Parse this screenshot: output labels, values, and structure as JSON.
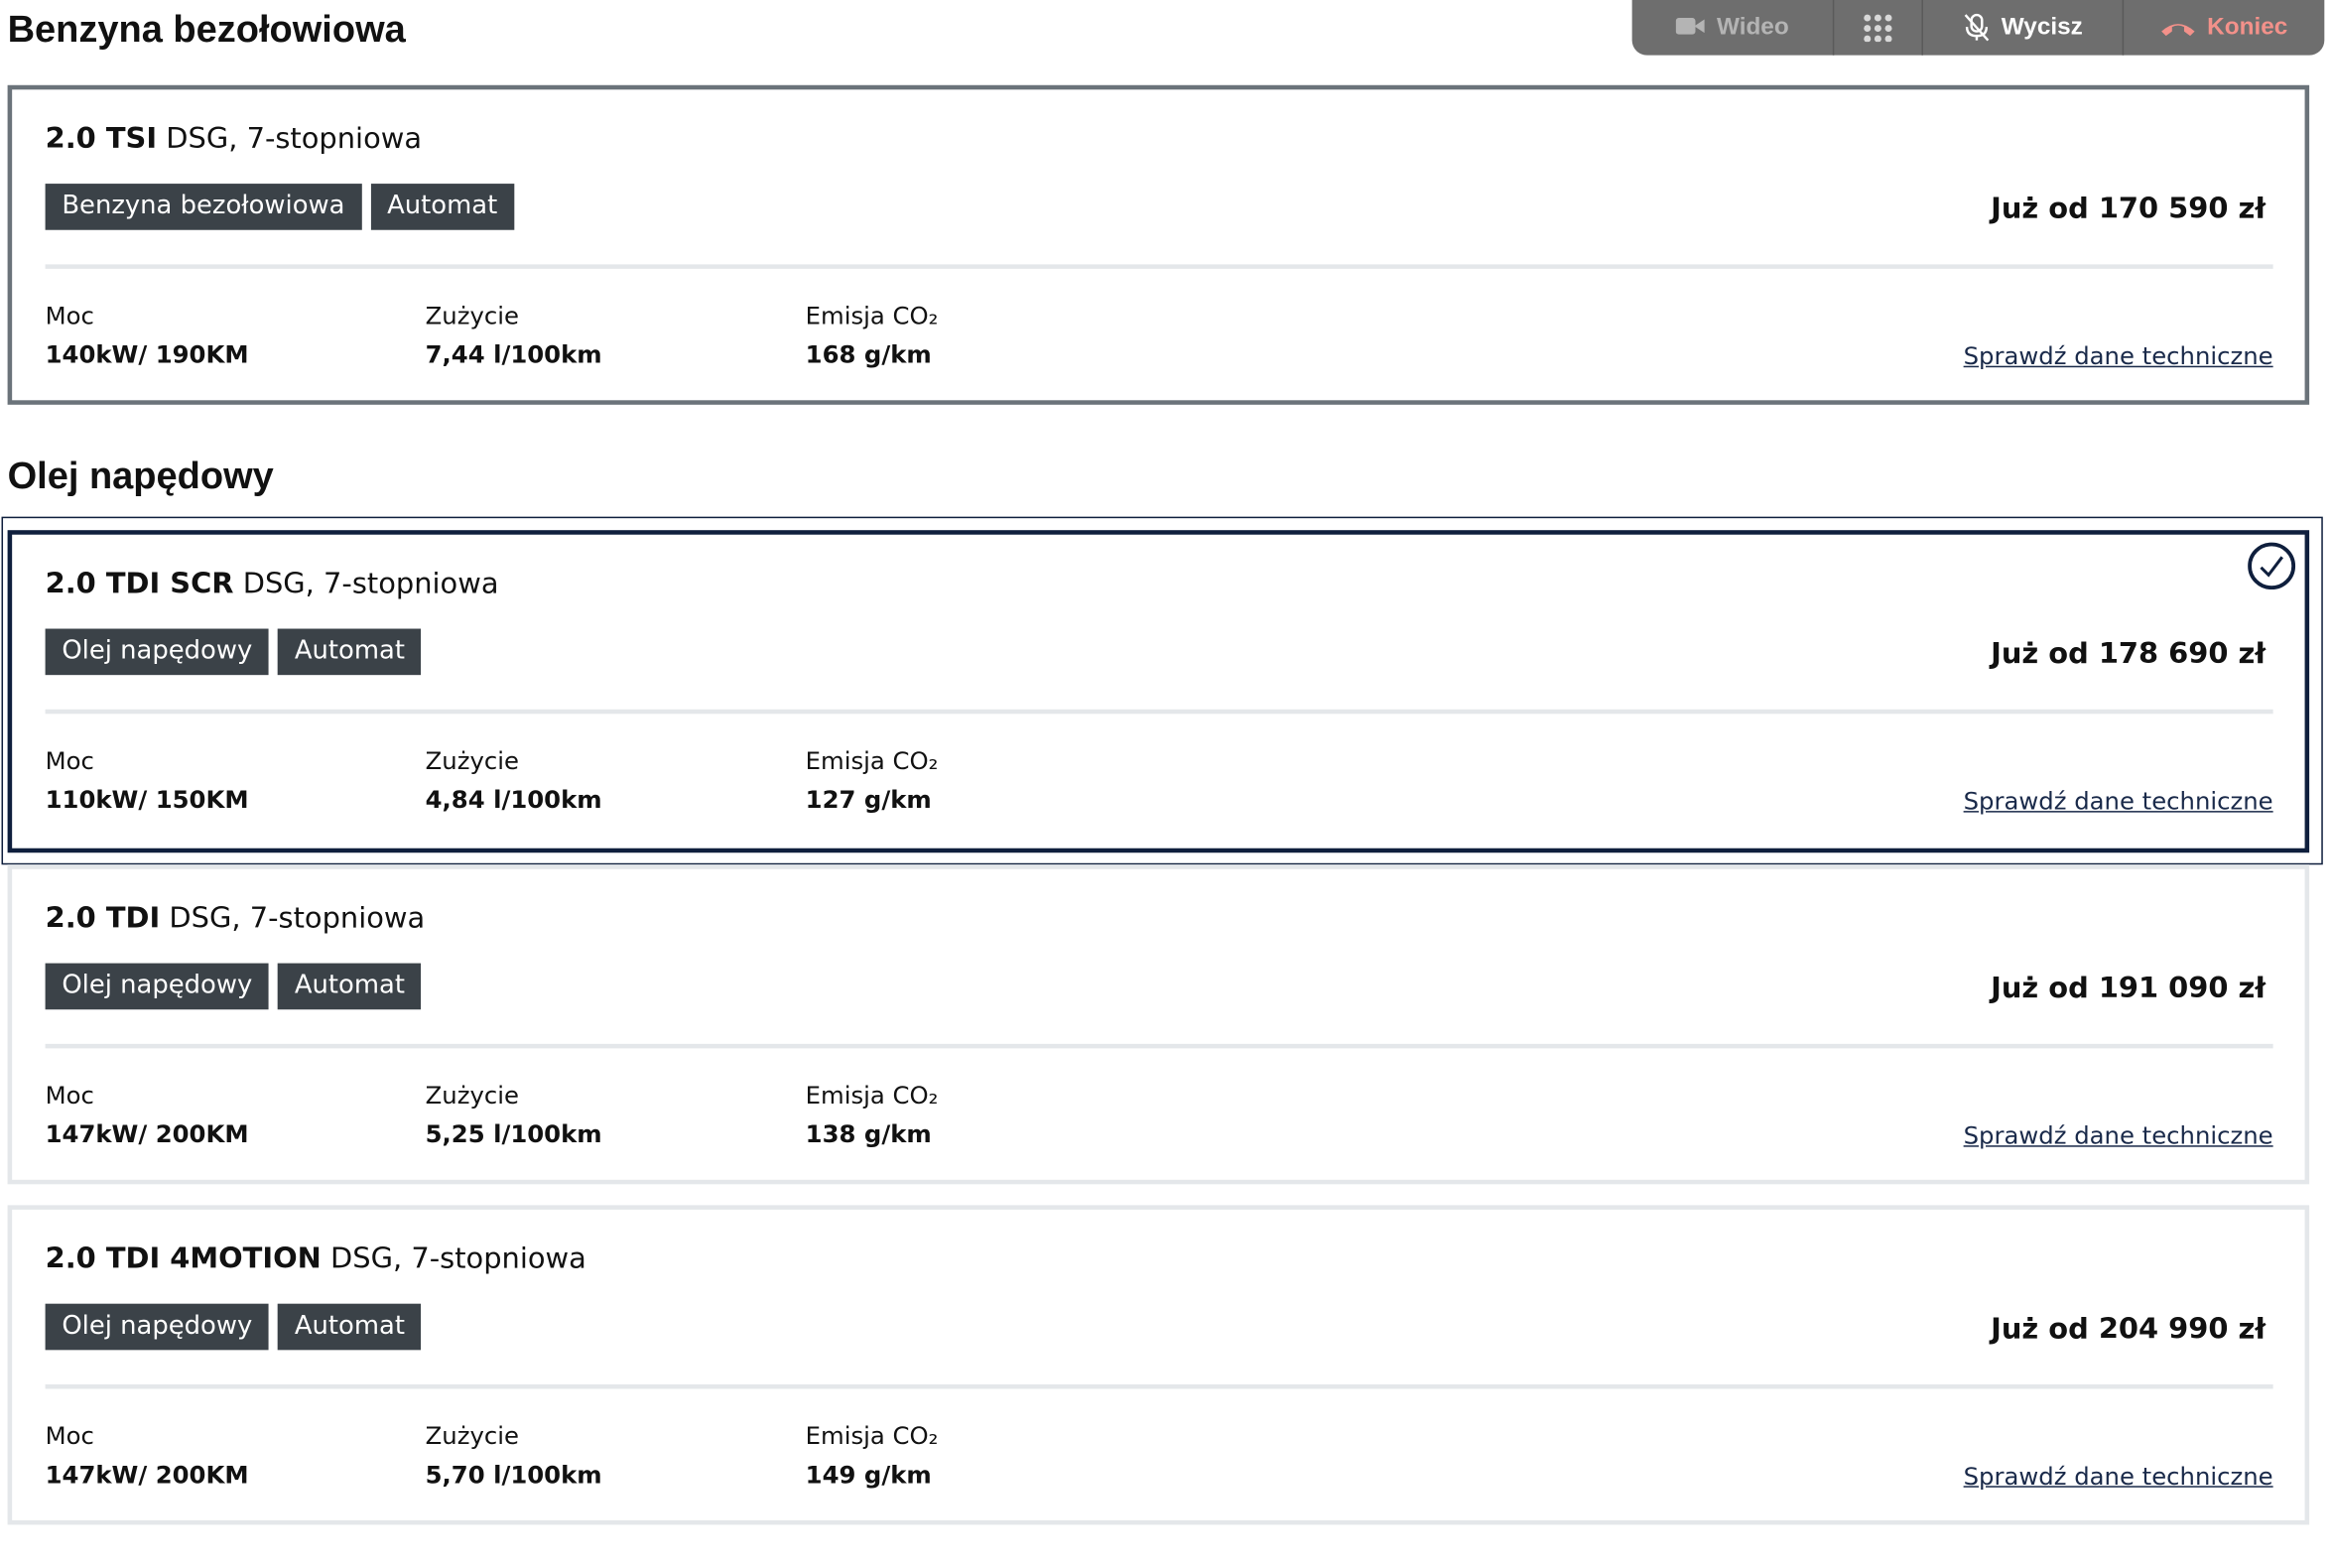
{
  "call_bar": {
    "buttons": [
      "Wideo",
      "Wycisz",
      "Koniec"
    ]
  },
  "sections": [
    {
      "title": "Benzyna bezołowiowa",
      "engines": [
        {
          "name": "2.0 TSI",
          "transmission": "DSG, 7-stopniowa",
          "tags": [
            "Benzyna bezołowiowa",
            "Automat"
          ],
          "price": "Już od 170 590 zł",
          "specs": [
            {
              "label": "Moc",
              "value": "140kW/ 190KM"
            },
            {
              "label": "Zużycie",
              "value": "7,44 l/100km"
            },
            {
              "label": "Emisja CO₂",
              "value": "168 g/km"
            }
          ],
          "link": "Sprawdź dane techniczne",
          "selected": false
        }
      ]
    },
    {
      "title": "Olej napędowy",
      "engines": [
        {
          "name": "2.0 TDI SCR",
          "transmission": "DSG, 7-stopniowa",
          "tags": [
            "Olej napędowy",
            "Automat"
          ],
          "price": "Już od 178 690 zł",
          "specs": [
            {
              "label": "Moc",
              "value": "110kW/ 150KM"
            },
            {
              "label": "Zużycie",
              "value": "4,84 l/100km"
            },
            {
              "label": "Emisja CO₂",
              "value": "127 g/km"
            }
          ],
          "link": "Sprawdź dane techniczne",
          "selected": true
        },
        {
          "name": "2.0 TDI",
          "transmission": "DSG, 7-stopniowa",
          "tags": [
            "Olej napędowy",
            "Automat"
          ],
          "price": "Już od 191 090 zł",
          "specs": [
            {
              "label": "Moc",
              "value": "147kW/ 200KM"
            },
            {
              "label": "Zużycie",
              "value": "5,25 l/100km"
            },
            {
              "label": "Emisja CO₂",
              "value": "138 g/km"
            }
          ],
          "link": "Sprawdź dane techniczne",
          "selected": false
        },
        {
          "name": "2.0 TDI 4MOTION",
          "transmission": "DSG, 7-stopniowa",
          "tags": [
            "Olej napędowy",
            "Automat"
          ],
          "price": "Już od 204 990 zł",
          "specs": [
            {
              "label": "Moc",
              "value": "147kW/ 200KM"
            },
            {
              "label": "Zużycie",
              "value": "5,70 l/100km"
            },
            {
              "label": "Emisja CO₂",
              "value": "149 g/km"
            }
          ],
          "link": "Sprawdź dane techniczne",
          "selected": false
        }
      ]
    }
  ]
}
